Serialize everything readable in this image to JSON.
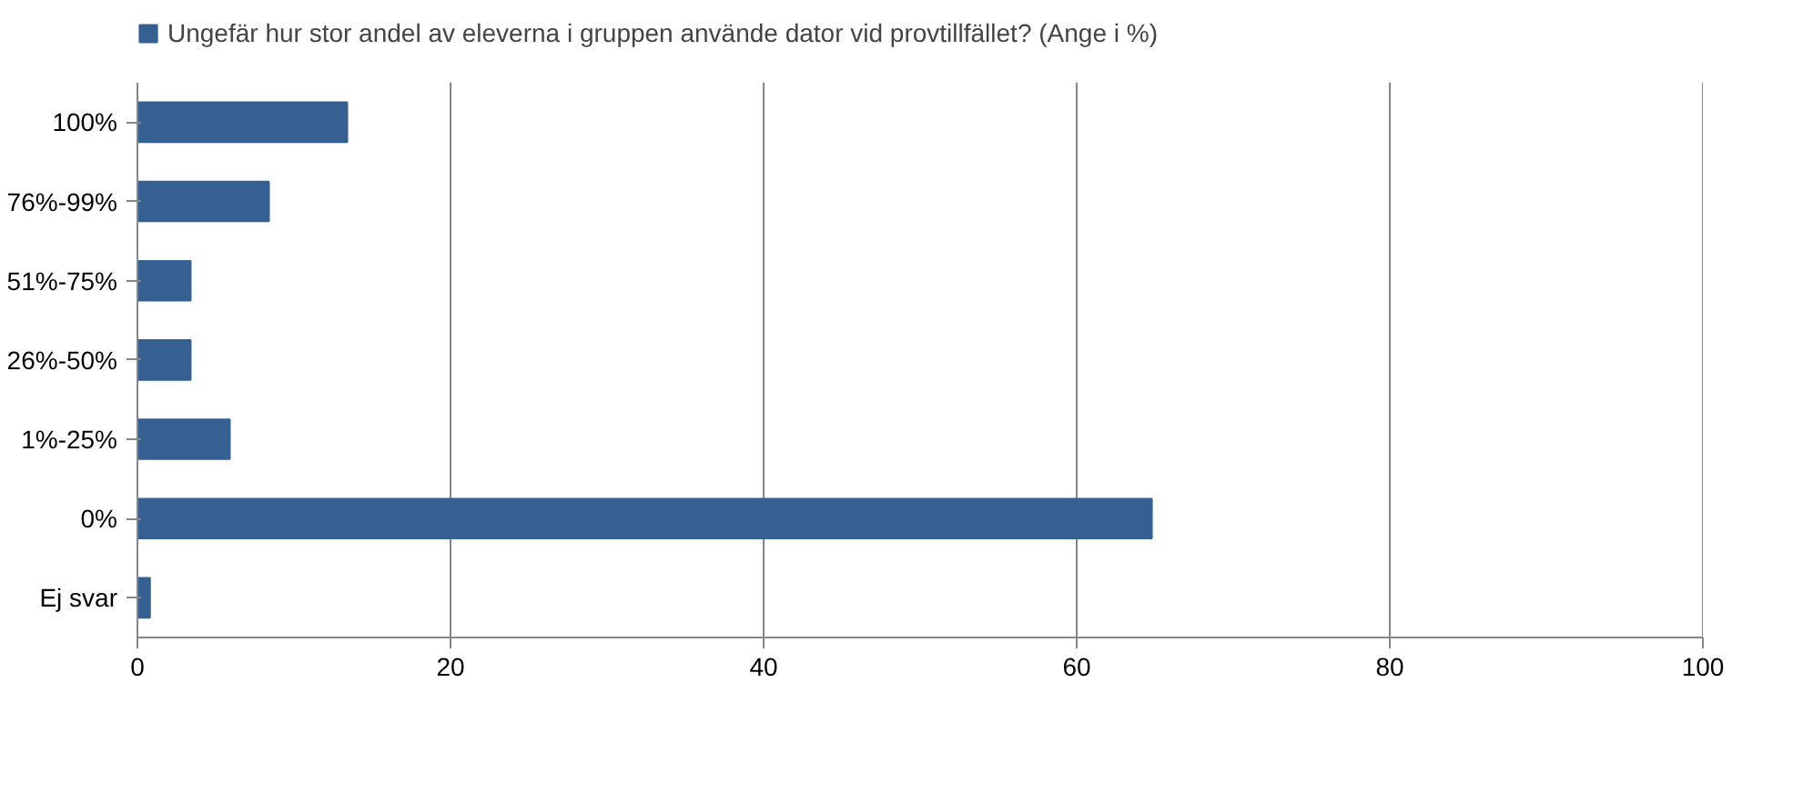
{
  "chart_data": {
    "type": "bar",
    "orientation": "horizontal",
    "categories": [
      "100%",
      "76%-99%",
      "51%-75%",
      "26%-50%",
      "1%-25%",
      "0%",
      "Ej svar"
    ],
    "series": [
      {
        "name": "Ungefär hur stor andel av eleverna i gruppen använde dator vid provtillfället? (Ange i %)",
        "color": "#376092",
        "values": [
          13.4,
          8.4,
          3.4,
          3.4,
          5.9,
          64.8,
          0.8
        ]
      }
    ],
    "xlim": [
      0,
      100
    ],
    "xticks": [
      0,
      20,
      40,
      60,
      80,
      100
    ],
    "grid": "x",
    "legend": "top"
  }
}
